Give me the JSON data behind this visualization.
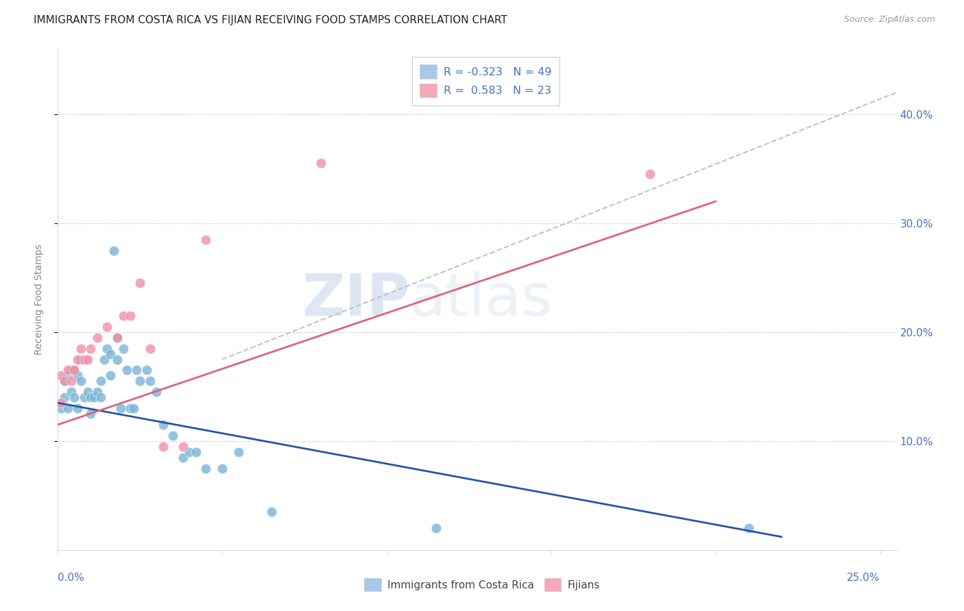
{
  "title": "IMMIGRANTS FROM COSTA RICA VS FIJIAN RECEIVING FOOD STAMPS CORRELATION CHART",
  "source": "Source: ZipAtlas.com",
  "ylabel": "Receiving Food Stamps",
  "watermark_zip": "ZIP",
  "watermark_atlas": "atlas",
  "legend_entries": [
    {
      "label_r": "R = -0.323",
      "label_n": "N = 49",
      "color": "#a8c8e8"
    },
    {
      "label_r": "R =  0.583",
      "label_n": "N = 23",
      "color": "#f4a8b8"
    }
  ],
  "legend_bottom": [
    "Immigrants from Costa Rica",
    "Fijians"
  ],
  "costa_rica_x": [
    0.001,
    0.002,
    0.002,
    0.003,
    0.003,
    0.004,
    0.004,
    0.005,
    0.005,
    0.006,
    0.006,
    0.007,
    0.007,
    0.008,
    0.009,
    0.01,
    0.01,
    0.011,
    0.012,
    0.013,
    0.013,
    0.014,
    0.015,
    0.016,
    0.016,
    0.017,
    0.018,
    0.018,
    0.019,
    0.02,
    0.021,
    0.022,
    0.023,
    0.024,
    0.025,
    0.027,
    0.028,
    0.03,
    0.032,
    0.035,
    0.038,
    0.04,
    0.042,
    0.045,
    0.05,
    0.055,
    0.065,
    0.115,
    0.21
  ],
  "costa_rica_y": [
    0.13,
    0.155,
    0.14,
    0.16,
    0.13,
    0.165,
    0.145,
    0.165,
    0.14,
    0.16,
    0.13,
    0.175,
    0.155,
    0.14,
    0.145,
    0.14,
    0.125,
    0.14,
    0.145,
    0.155,
    0.14,
    0.175,
    0.185,
    0.18,
    0.16,
    0.275,
    0.175,
    0.195,
    0.13,
    0.185,
    0.165,
    0.13,
    0.13,
    0.165,
    0.155,
    0.165,
    0.155,
    0.145,
    0.115,
    0.105,
    0.085,
    0.09,
    0.09,
    0.075,
    0.075,
    0.09,
    0.035,
    0.02,
    0.02
  ],
  "fijian_x": [
    0.001,
    0.001,
    0.002,
    0.003,
    0.004,
    0.005,
    0.006,
    0.007,
    0.008,
    0.009,
    0.01,
    0.012,
    0.015,
    0.018,
    0.02,
    0.022,
    0.025,
    0.028,
    0.032,
    0.038,
    0.045,
    0.08,
    0.18
  ],
  "fijian_y": [
    0.135,
    0.16,
    0.155,
    0.165,
    0.155,
    0.165,
    0.175,
    0.185,
    0.175,
    0.175,
    0.185,
    0.195,
    0.205,
    0.195,
    0.215,
    0.215,
    0.245,
    0.185,
    0.095,
    0.095,
    0.285,
    0.355,
    0.345
  ],
  "blue_line_x": [
    0.0,
    0.22
  ],
  "blue_line_y": [
    0.135,
    0.012
  ],
  "pink_line_x": [
    0.0,
    0.2
  ],
  "pink_line_y": [
    0.115,
    0.32
  ],
  "gray_line_x": [
    0.05,
    0.255
  ],
  "gray_line_y": [
    0.175,
    0.42
  ],
  "dot_color_costa": "#7ab4d8",
  "dot_color_fijian": "#f090a8",
  "blue_line_color": "#2255aa",
  "pink_line_color": "#e06080",
  "gray_line_color": "#b8c4d4",
  "xlim": [
    0.0,
    0.255
  ],
  "ylim": [
    0.0,
    0.46
  ],
  "yticks": [
    0.1,
    0.2,
    0.3,
    0.4
  ],
  "ytick_labels": [
    "10.0%",
    "20.0%",
    "30.0%",
    "40.0%"
  ],
  "title_fontsize": 11,
  "source_fontsize": 9,
  "axis_label_color": "#4472c4",
  "grid_color": "#d0d8e4",
  "ylabel_color": "#888888"
}
